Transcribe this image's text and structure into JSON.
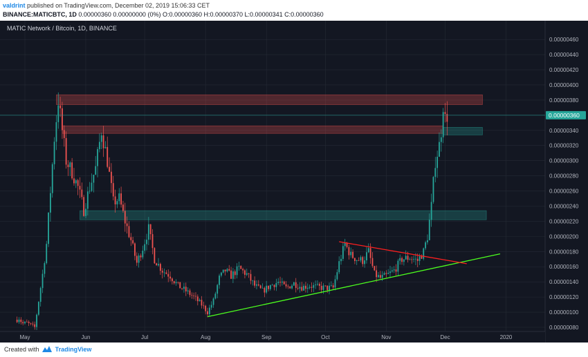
{
  "header": {
    "author": "valdrint",
    "published_text": "published on TradingView.com, December 02, 2019 15:06:33 CET",
    "symbol": "BINANCE:MATICBTC, 1D",
    "ohlc_text": "0.00000360 0.00000000 (0%) O:0.00000360 H:0.00000370 L:0.00000341 C:0.00000360"
  },
  "legend_title": "MATIC Network / Bitcoin, 1D, BINANCE",
  "footer": {
    "created_with": "Created with",
    "brand": "TradingView"
  },
  "colors": {
    "background": "#131722",
    "grid": "#252a35",
    "up": "#26a69a",
    "down": "#ef5350",
    "support_line": "#4cff1e",
    "resistance_line": "#ff1f1f",
    "price_tag": "#26a69a"
  },
  "chart_data": {
    "type": "candlestick",
    "title": "MATIC Network / Bitcoin, 1D, BINANCE",
    "x_ticks": [
      "May",
      "Jun",
      "Jul",
      "Aug",
      "Sep",
      "Oct",
      "Nov",
      "Dec",
      "2020"
    ],
    "y_ticks": [
      "0.00000080",
      "0.00000100",
      "0.00000120",
      "0.00000140",
      "0.00000160",
      "0.00000180",
      "0.00000200",
      "0.00000220",
      "0.00000240",
      "0.00000260",
      "0.00000280",
      "0.00000300",
      "0.00000320",
      "0.00000340",
      "0.00000360",
      "0.00000380",
      "0.00000400",
      "0.00000420",
      "0.00000440",
      "0.00000460"
    ],
    "ylim": [
      8e-07,
      4.72e-06
    ],
    "last_price_label": "0.00000360",
    "last_price": 3.6e-06,
    "grid": true,
    "candle_series": [
      {
        "date": "2019-04-27",
        "close": 9e-07
      },
      {
        "date": "2019-04-28",
        "close": 9.2e-07
      },
      {
        "date": "2019-04-29",
        "close": 8.8e-07
      },
      {
        "date": "2019-04-30",
        "close": 8.5e-07
      },
      {
        "date": "2019-05-02",
        "close": 8.6e-07
      },
      {
        "date": "2019-05-06",
        "close": 8e-07
      },
      {
        "date": "2019-05-10",
        "close": 1.5e-06
      },
      {
        "date": "2019-05-12",
        "close": 1.9e-06
      },
      {
        "date": "2019-05-14",
        "close": 2.6e-06
      },
      {
        "date": "2019-05-16",
        "close": 3.3e-06
      },
      {
        "date": "2019-05-18",
        "close": 3.8e-06
      },
      {
        "date": "2019-05-20",
        "close": 3.4e-06
      },
      {
        "date": "2019-05-22",
        "close": 3e-06
      },
      {
        "date": "2019-05-25",
        "close": 2.85e-06
      },
      {
        "date": "2019-05-28",
        "close": 2.65e-06
      },
      {
        "date": "2019-05-31",
        "close": 2.35e-06
      },
      {
        "date": "2019-06-03",
        "close": 2.65e-06
      },
      {
        "date": "2019-06-06",
        "close": 2.9e-06
      },
      {
        "date": "2019-06-09",
        "close": 3.4e-06
      },
      {
        "date": "2019-06-12",
        "close": 3e-06
      },
      {
        "date": "2019-06-15",
        "close": 2.45e-06
      },
      {
        "date": "2019-06-18",
        "close": 2.5e-06
      },
      {
        "date": "2019-06-21",
        "close": 2.2e-06
      },
      {
        "date": "2019-06-24",
        "close": 1.95e-06
      },
      {
        "date": "2019-06-27",
        "close": 1.65e-06
      },
      {
        "date": "2019-06-30",
        "close": 1.85e-06
      },
      {
        "date": "2019-07-03",
        "close": 2.1e-06
      },
      {
        "date": "2019-07-06",
        "close": 1.7e-06
      },
      {
        "date": "2019-07-10",
        "close": 1.55e-06
      },
      {
        "date": "2019-07-14",
        "close": 1.48e-06
      },
      {
        "date": "2019-07-18",
        "close": 1.35e-06
      },
      {
        "date": "2019-07-22",
        "close": 1.28e-06
      },
      {
        "date": "2019-07-26",
        "close": 1.2e-06
      },
      {
        "date": "2019-07-30",
        "close": 1.1e-06
      },
      {
        "date": "2019-08-02",
        "close": 1e-06
      },
      {
        "date": "2019-08-05",
        "close": 1.15e-06
      },
      {
        "date": "2019-08-08",
        "close": 1.45e-06
      },
      {
        "date": "2019-08-11",
        "close": 1.55e-06
      },
      {
        "date": "2019-08-14",
        "close": 1.48e-06
      },
      {
        "date": "2019-08-18",
        "close": 1.58e-06
      },
      {
        "date": "2019-08-22",
        "close": 1.5e-06
      },
      {
        "date": "2019-08-26",
        "close": 1.35e-06
      },
      {
        "date": "2019-08-30",
        "close": 1.28e-06
      },
      {
        "date": "2019-09-03",
        "close": 1.35e-06
      },
      {
        "date": "2019-09-07",
        "close": 1.4e-06
      },
      {
        "date": "2019-09-11",
        "close": 1.32e-06
      },
      {
        "date": "2019-09-15",
        "close": 1.38e-06
      },
      {
        "date": "2019-09-19",
        "close": 1.33e-06
      },
      {
        "date": "2019-09-23",
        "close": 1.35e-06
      },
      {
        "date": "2019-09-27",
        "close": 1.33e-06
      },
      {
        "date": "2019-10-01",
        "close": 1.32e-06
      },
      {
        "date": "2019-10-05",
        "close": 1.32e-06
      },
      {
        "date": "2019-10-08",
        "close": 1.65e-06
      },
      {
        "date": "2019-10-11",
        "close": 1.9e-06
      },
      {
        "date": "2019-10-14",
        "close": 1.75e-06
      },
      {
        "date": "2019-10-17",
        "close": 1.7e-06
      },
      {
        "date": "2019-10-20",
        "close": 1.68e-06
      },
      {
        "date": "2019-10-23",
        "close": 1.8e-06
      },
      {
        "date": "2019-10-26",
        "close": 1.5e-06
      },
      {
        "date": "2019-10-29",
        "close": 1.45e-06
      },
      {
        "date": "2019-11-01",
        "close": 1.48e-06
      },
      {
        "date": "2019-11-05",
        "close": 1.55e-06
      },
      {
        "date": "2019-11-09",
        "close": 1.7e-06
      },
      {
        "date": "2019-11-13",
        "close": 1.72e-06
      },
      {
        "date": "2019-11-17",
        "close": 1.68e-06
      },
      {
        "date": "2019-11-20",
        "close": 1.8e-06
      },
      {
        "date": "2019-11-22",
        "close": 2e-06
      },
      {
        "date": "2019-11-24",
        "close": 2.4e-06
      },
      {
        "date": "2019-11-26",
        "close": 3e-06
      },
      {
        "date": "2019-11-28",
        "close": 3.2e-06
      },
      {
        "date": "2019-11-29",
        "close": 3.4e-06
      },
      {
        "date": "2019-11-30",
        "close": 3.75e-06
      },
      {
        "date": "2019-12-01",
        "close": 3.55e-06
      },
      {
        "date": "2019-12-02",
        "close": 3.6e-06
      }
    ],
    "zones": [
      {
        "name": "resistance-zone-top",
        "from_date": "2019-05-17",
        "to_date": "2019-12-20",
        "y_low": 3.74e-06,
        "y_high": 3.87e-06,
        "color": "#ef5350"
      },
      {
        "name": "resistance-zone-mid",
        "from_date": "2019-05-20",
        "to_date": "2019-11-30",
        "y_low": 3.36e-06,
        "y_high": 3.46e-06,
        "color": "#ef5350"
      },
      {
        "name": "support-zone-mid",
        "from_date": "2019-11-30",
        "to_date": "2019-12-20",
        "y_low": 3.34e-06,
        "y_high": 3.44e-06,
        "color": "#26a69a"
      },
      {
        "name": "support-zone-low",
        "from_date": "2019-05-29",
        "to_date": "2019-12-22",
        "y_low": 2.22e-06,
        "y_high": 2.34e-06,
        "color": "#26a69a"
      }
    ],
    "trend_lines": [
      {
        "name": "support-trendline",
        "x1": "2019-08-02",
        "y1": 9.4e-07,
        "x2": "2019-12-29",
        "y2": 1.77e-06,
        "color": "#4cff1e"
      },
      {
        "name": "resistance-trendline",
        "x1": "2019-10-08",
        "y1": 1.93e-06,
        "x2": "2019-12-12",
        "y2": 1.64e-06,
        "color": "#ff1f1f"
      }
    ]
  }
}
